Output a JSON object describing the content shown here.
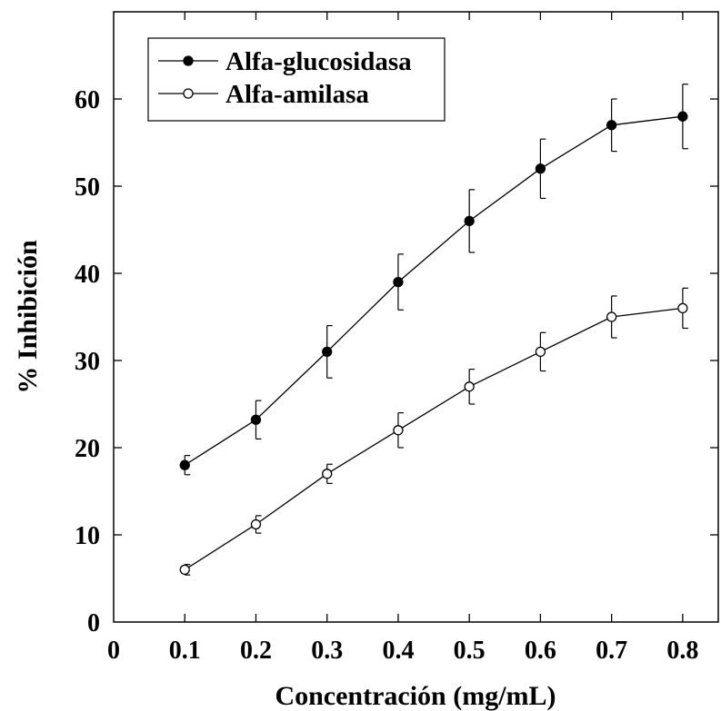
{
  "chart_data": {
    "type": "line",
    "xlabel": "Concentración (mg/mL)",
    "ylabel": "% Inhibición",
    "xlim": [
      0,
      0.85
    ],
    "ylim": [
      0,
      70
    ],
    "x_ticks": [
      0,
      0.1,
      0.2,
      0.3,
      0.4,
      0.5,
      0.6,
      0.7,
      0.8
    ],
    "x_tick_labels": [
      "0",
      "0.1",
      "0.2",
      "0.3",
      "0.4",
      "0.5",
      "0.6",
      "0.7",
      "0.8"
    ],
    "y_ticks": [
      0,
      10,
      20,
      30,
      40,
      50,
      60
    ],
    "y_tick_labels": [
      "0",
      "10",
      "20",
      "30",
      "40",
      "50",
      "60"
    ],
    "grid": false,
    "legend_position": "top-left",
    "x": [
      0.1,
      0.2,
      0.3,
      0.4,
      0.5,
      0.6,
      0.7,
      0.8
    ],
    "series": [
      {
        "name": "Alfa-glucosidasa",
        "marker": "filled-circle",
        "values": [
          18,
          23.2,
          31,
          39,
          46,
          52,
          57,
          58
        ],
        "error": [
          1.1,
          2.2,
          3.0,
          3.2,
          3.6,
          3.4,
          3.0,
          3.7
        ]
      },
      {
        "name": "Alfa-amilasa",
        "marker": "open-circle",
        "values": [
          6,
          11.2,
          17,
          22,
          27,
          31,
          35,
          36
        ],
        "error": [
          0.6,
          1.0,
          1.1,
          2.0,
          2.0,
          2.2,
          2.4,
          2.3
        ]
      }
    ],
    "colors": {
      "line": "#000000",
      "background": "#ffffff"
    }
  }
}
